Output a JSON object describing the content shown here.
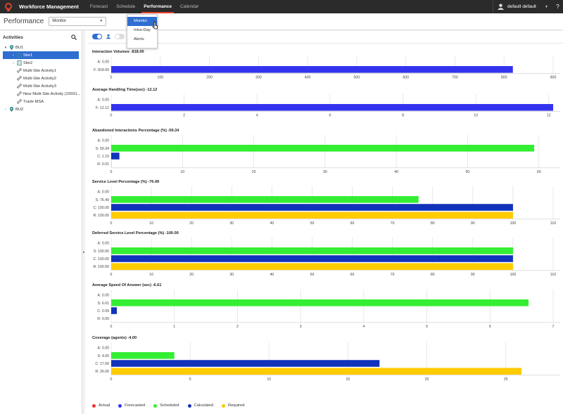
{
  "app": {
    "brand": "Workforce Management",
    "nav": [
      {
        "label": "Forecast",
        "active": false
      },
      {
        "label": "Schedule",
        "active": false
      },
      {
        "label": "Performance",
        "active": true
      },
      {
        "label": "Calendar",
        "active": false
      }
    ],
    "user": "default default",
    "help": "?"
  },
  "subheader": {
    "title": "Performance",
    "view_select": "Monitor"
  },
  "dropdown": {
    "items": [
      {
        "label": "Monitor",
        "selected": true
      },
      {
        "label": "Intra-Day",
        "selected": false
      },
      {
        "label": "Alerts",
        "selected": false
      }
    ]
  },
  "sidebar": {
    "title": "Activities",
    "tree": [
      {
        "label": "BU1",
        "level": 0,
        "expand": "down",
        "icon": "pin-icon",
        "selected": false
      },
      {
        "label": "Site1",
        "level": 1,
        "expand": "right",
        "icon": "building-icon",
        "selected": true
      },
      {
        "label": "Site2",
        "level": 1,
        "expand": "right",
        "icon": "building-icon",
        "selected": false
      },
      {
        "label": "Multi-Site Activity1",
        "level": 1,
        "expand": "",
        "icon": "link-icon",
        "selected": false
      },
      {
        "label": "Multi-Site Activity2",
        "level": 1,
        "expand": "",
        "icon": "link-icon",
        "selected": false
      },
      {
        "label": "Multi-Site Activity3",
        "level": 1,
        "expand": "",
        "icon": "link-icon",
        "selected": false
      },
      {
        "label": "New Multi-Site Activity (15591...",
        "level": 1,
        "expand": "",
        "icon": "link-icon",
        "selected": false
      },
      {
        "label": "Trade MSA",
        "level": 1,
        "expand": "",
        "icon": "link-icon",
        "selected": false
      },
      {
        "label": "BU2",
        "level": 0,
        "expand": "right",
        "icon": "pin-icon",
        "selected": false
      }
    ]
  },
  "colors": {
    "forecasted": "#3333ee",
    "scheduled": "#33ee33",
    "calculated": "#1133bb",
    "required": "#ffcc00",
    "actual": "#ee3333",
    "accent": "#2f6ed1"
  },
  "chart_data": [
    {
      "type": "bar",
      "title": "Interaction Volumes -818.00",
      "categories": [
        "A: 0.00",
        "F: 818.00"
      ],
      "series": [
        {
          "values": [
            0,
            818
          ],
          "colors": [
            "actual",
            "forecasted"
          ]
        }
      ],
      "ticks": [
        0,
        100,
        200,
        300,
        400,
        500,
        600,
        700,
        800,
        900
      ],
      "xlim": [
        0,
        900
      ]
    },
    {
      "type": "bar",
      "title": "Average Handling Time(sec) -12.12",
      "categories": [
        "A: 0.00",
        "F: 12.12"
      ],
      "series": [
        {
          "values": [
            0,
            12.12
          ],
          "colors": [
            "actual",
            "forecasted"
          ]
        }
      ],
      "ticks": [
        0,
        2,
        4,
        6,
        8,
        10,
        12
      ],
      "xlim": [
        0,
        12.12
      ]
    },
    {
      "type": "bar",
      "title": "Abandoned Interactions Percentage (%) -59.34",
      "categories": [
        "A: 0.00",
        "S: 59.34",
        "C: 1.15",
        "R: 0.01"
      ],
      "series": [
        {
          "values": [
            0,
            59.34,
            1.15,
            0.01
          ],
          "colors": [
            "actual",
            "scheduled",
            "calculated",
            "required"
          ]
        }
      ],
      "ticks": [
        0,
        10,
        20,
        30,
        40,
        50,
        60
      ],
      "xlim": [
        0,
        62
      ]
    },
    {
      "type": "bar",
      "title": "Service Level Percentage (%) -76.49",
      "categories": [
        "A: 0.00",
        "S: 76.49",
        "C: 100.00",
        "R: 100.00"
      ],
      "series": [
        {
          "values": [
            0,
            76.49,
            100,
            100
          ],
          "colors": [
            "actual",
            "scheduled",
            "calculated",
            "required"
          ]
        }
      ],
      "ticks": [
        0,
        10,
        20,
        30,
        40,
        50,
        60,
        70,
        80,
        90,
        100,
        110
      ],
      "xlim": [
        0,
        110
      ]
    },
    {
      "type": "bar",
      "title": "Deferred Service Level Percentage (%) -100.00",
      "categories": [
        "A: 0.00",
        "S: 100.00",
        "C: 100.00",
        "R: 100.00"
      ],
      "series": [
        {
          "values": [
            0,
            100,
            100,
            100
          ],
          "colors": [
            "actual",
            "scheduled",
            "calculated",
            "required"
          ]
        }
      ],
      "ticks": [
        0,
        10,
        20,
        30,
        40,
        50,
        60,
        70,
        80,
        90,
        100,
        110
      ],
      "xlim": [
        0,
        110
      ]
    },
    {
      "type": "bar",
      "title": "Average Speed Of Answer (sec) -6.61",
      "categories": [
        "A: 0.00",
        "S: 6.61",
        "C: 0.09",
        "R: 0.00"
      ],
      "series": [
        {
          "values": [
            0,
            6.61,
            0.09,
            0
          ],
          "colors": [
            "actual",
            "scheduled",
            "calculated",
            "required"
          ]
        }
      ],
      "ticks": [
        0,
        1,
        2,
        3,
        4,
        5,
        6,
        7
      ],
      "xlim": [
        0,
        7
      ]
    },
    {
      "type": "bar",
      "title": "Coverage (agents) -4.00",
      "categories": [
        "A: 0.00",
        "S: 4.00",
        "C: 17.00",
        "R: 26.00"
      ],
      "series": [
        {
          "values": [
            0,
            4,
            17,
            26
          ],
          "colors": [
            "actual",
            "scheduled",
            "calculated",
            "required"
          ]
        }
      ],
      "ticks": [
        0,
        5,
        10,
        15,
        20,
        25
      ],
      "xlim": [
        0,
        28
      ]
    }
  ],
  "legend": [
    {
      "label": "Actual",
      "color": "actual"
    },
    {
      "label": "Forecasted",
      "color": "forecasted"
    },
    {
      "label": "Scheduled",
      "color": "scheduled"
    },
    {
      "label": "Calculated",
      "color": "calculated"
    },
    {
      "label": "Required",
      "color": "required"
    }
  ]
}
